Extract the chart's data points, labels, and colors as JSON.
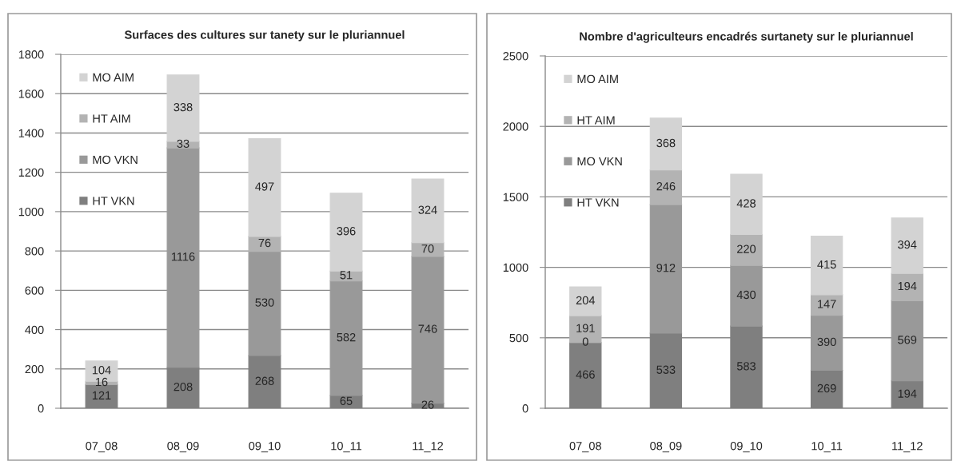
{
  "chart_data": [
    {
      "type": "bar",
      "title": "Surfaces des cultures sur tanety sur le pluriannuel",
      "categories": [
        "07_08",
        "08_09",
        "09_10",
        "10_11",
        "11_12"
      ],
      "stacked": true,
      "series": [
        {
          "name": "HT VKN",
          "color": "#7f7f7f",
          "values": [
            121,
            208,
            268,
            65,
            26
          ],
          "value_labels": [
            "121",
            "208",
            "268",
            "65",
            "26"
          ]
        },
        {
          "name": "MO VKN",
          "color": "#999999",
          "values": [
            0,
            1116,
            530,
            582,
            746
          ],
          "value_labels": [
            null,
            "1116",
            "530",
            "582",
            "746"
          ]
        },
        {
          "name": "HT AIM",
          "color": "#b3b3b3",
          "values": [
            16,
            33,
            76,
            51,
            70
          ],
          "value_labels": [
            "16",
            "33",
            "76",
            "51",
            "70"
          ]
        },
        {
          "name": "MO AIM",
          "color": "#d3d3d3",
          "values": [
            104,
            338,
            497,
            396,
            324
          ],
          "value_labels": [
            "104",
            "338",
            "497",
            "396",
            "324"
          ]
        }
      ],
      "ylim": [
        0,
        1800
      ],
      "yticks": [
        0,
        200,
        400,
        600,
        800,
        1000,
        1200,
        1400,
        1600,
        1800
      ],
      "grid": "y",
      "legend": "top left"
    },
    {
      "type": "bar",
      "title": "Nombre d'agriculteurs encadrés surtanety sur le pluriannuel",
      "categories": [
        "07_08",
        "08_09",
        "09_10",
        "10_11",
        "11_12"
      ],
      "stacked": true,
      "series": [
        {
          "name": "HT VKN",
          "color": "#7f7f7f",
          "values": [
            466,
            533,
            583,
            269,
            194
          ]
        },
        {
          "name": "MO VKN",
          "color": "#999999",
          "values": [
            0,
            912,
            430,
            390,
            569
          ]
        },
        {
          "name": "HT AIM",
          "color": "#b3b3b3",
          "values": [
            191,
            246,
            220,
            147,
            194
          ]
        },
        {
          "name": "MO AIM",
          "color": "#d3d3d3",
          "values": [
            204,
            368,
            428,
            415,
            394
          ]
        }
      ],
      "ylim": [
        0,
        2500
      ],
      "yticks": [
        0,
        500,
        1000,
        1500,
        2000,
        2500
      ],
      "grid": "y",
      "legend": "top left",
      "data_labels": true
    }
  ]
}
